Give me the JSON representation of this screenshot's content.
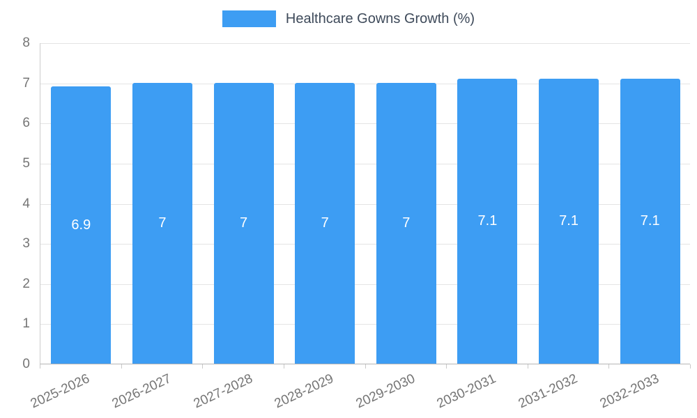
{
  "chart_data": {
    "type": "bar",
    "title": "Healthcare Gowns Growth (%)",
    "categories": [
      "2025-2026",
      "2026-2027",
      "2027-2028",
      "2028-2029",
      "2029-2030",
      "2030-2031",
      "2031-2032",
      "2032-2033"
    ],
    "values": [
      6.9,
      7,
      7,
      7,
      7,
      7.1,
      7.1,
      7.1
    ],
    "value_labels": [
      "6.9",
      "7",
      "7",
      "7",
      "7",
      "7.1",
      "7.1",
      "7.1"
    ],
    "xlabel": "",
    "ylabel": "",
    "ylim": [
      0,
      8
    ],
    "yticks": [
      0,
      1,
      2,
      3,
      4,
      5,
      6,
      7,
      8
    ],
    "grid": true,
    "legend_position": "top",
    "bar_color": "#3d9df3",
    "label_color": "#ffffff",
    "title_color": "#3e4a5a",
    "axis_text_color": "#757575",
    "grid_color": "#e4e4e4",
    "tick_color": "#c9c9c9"
  }
}
